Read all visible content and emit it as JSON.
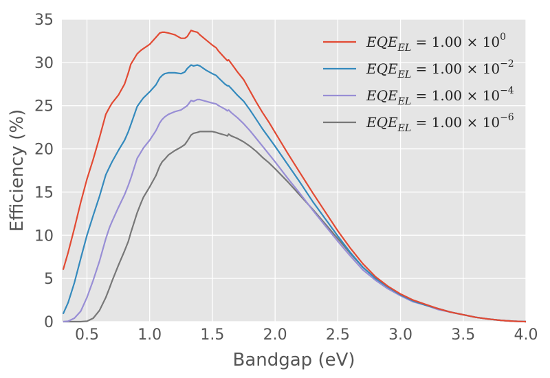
{
  "chart_data": {
    "type": "line",
    "title": "",
    "xlabel": "Bandgap (eV)",
    "ylabel": "Efficiency (%)",
    "xlim": [
      0.3,
      4.0
    ],
    "ylim": [
      0,
      35
    ],
    "xticks": [
      "0.5",
      "1.0",
      "1.5",
      "2.0",
      "2.5",
      "3.0",
      "3.5",
      "4.0"
    ],
    "yticks": [
      "0",
      "5",
      "10",
      "15",
      "20",
      "25",
      "30",
      "35"
    ],
    "grid": true,
    "legend_position": "top-right",
    "background": "#e5e5e5",
    "series": [
      {
        "name": "EQE_EL = 1.00 × 10^0",
        "legend": {
          "base": "1.00",
          "exp": "0"
        },
        "color": "#e24a33",
        "x": [
          0.31,
          0.35,
          0.4,
          0.45,
          0.5,
          0.55,
          0.6,
          0.65,
          0.68,
          0.7,
          0.75,
          0.8,
          0.83,
          0.85,
          0.9,
          0.93,
          0.95,
          1.0,
          1.05,
          1.08,
          1.1,
          1.12,
          1.15,
          1.2,
          1.25,
          1.28,
          1.3,
          1.33,
          1.35,
          1.38,
          1.4,
          1.45,
          1.5,
          1.53,
          1.55,
          1.6,
          1.62,
          1.63,
          1.65,
          1.7,
          1.75,
          1.8,
          1.85,
          1.9,
          1.95,
          2.0,
          2.1,
          2.2,
          2.3,
          2.4,
          2.5,
          2.6,
          2.7,
          2.8,
          2.9,
          3.0,
          3.1,
          3.2,
          3.3,
          3.4,
          3.5,
          3.6,
          3.7,
          3.8,
          3.9,
          4.0
        ],
        "y": [
          6.0,
          8.0,
          10.8,
          13.8,
          16.5,
          18.8,
          21.3,
          24.0,
          24.8,
          25.3,
          26.2,
          27.5,
          28.8,
          29.8,
          31.0,
          31.4,
          31.6,
          32.1,
          32.9,
          33.4,
          33.5,
          33.5,
          33.4,
          33.2,
          32.8,
          32.8,
          33.0,
          33.7,
          33.6,
          33.5,
          33.2,
          32.6,
          32.0,
          31.7,
          31.3,
          30.5,
          30.2,
          30.3,
          29.9,
          28.9,
          28.0,
          26.7,
          25.4,
          24.2,
          23.1,
          21.9,
          19.5,
          17.2,
          14.9,
          12.7,
          10.5,
          8.5,
          6.7,
          5.2,
          4.1,
          3.2,
          2.5,
          2.0,
          1.5,
          1.1,
          0.8,
          0.5,
          0.3,
          0.15,
          0.05,
          0.0
        ]
      },
      {
        "name": "EQE_EL = 1.00 × 10^-2",
        "legend": {
          "base": "1.00",
          "exp": "−2"
        },
        "color": "#348abd",
        "x": [
          0.31,
          0.35,
          0.4,
          0.45,
          0.5,
          0.55,
          0.6,
          0.65,
          0.68,
          0.7,
          0.75,
          0.8,
          0.83,
          0.85,
          0.9,
          0.93,
          0.95,
          1.0,
          1.05,
          1.08,
          1.1,
          1.12,
          1.15,
          1.2,
          1.25,
          1.28,
          1.3,
          1.33,
          1.35,
          1.38,
          1.4,
          1.45,
          1.5,
          1.53,
          1.55,
          1.6,
          1.62,
          1.63,
          1.65,
          1.7,
          1.75,
          1.8,
          1.85,
          1.9,
          1.95,
          2.0,
          2.1,
          2.2,
          2.3,
          2.4,
          2.5,
          2.6,
          2.7,
          2.8,
          2.9,
          3.0,
          3.1,
          3.2,
          3.3,
          3.4,
          3.5,
          3.6,
          3.7,
          3.8,
          3.9,
          4.0
        ],
        "y": [
          0.9,
          2.2,
          4.5,
          7.3,
          10.0,
          12.3,
          14.5,
          17.0,
          17.9,
          18.5,
          19.8,
          21.0,
          22.0,
          22.8,
          24.9,
          25.5,
          25.9,
          26.6,
          27.4,
          28.2,
          28.5,
          28.7,
          28.8,
          28.8,
          28.7,
          28.9,
          29.3,
          29.7,
          29.6,
          29.7,
          29.6,
          29.1,
          28.7,
          28.5,
          28.2,
          27.5,
          27.3,
          27.3,
          27.0,
          26.2,
          25.5,
          24.5,
          23.4,
          22.3,
          21.3,
          20.3,
          18.2,
          16.1,
          13.9,
          11.9,
          9.9,
          8.0,
          6.3,
          5.0,
          4.0,
          3.1,
          2.4,
          1.9,
          1.5,
          1.1,
          0.8,
          0.5,
          0.3,
          0.15,
          0.05,
          0.0
        ]
      },
      {
        "name": "EQE_EL = 1.00 × 10^-4",
        "legend": {
          "base": "1.00",
          "exp": "−4"
        },
        "color": "#988ed5",
        "x": [
          0.31,
          0.35,
          0.4,
          0.45,
          0.5,
          0.55,
          0.6,
          0.65,
          0.68,
          0.7,
          0.75,
          0.8,
          0.83,
          0.85,
          0.9,
          0.93,
          0.95,
          1.0,
          1.05,
          1.08,
          1.1,
          1.12,
          1.15,
          1.2,
          1.25,
          1.28,
          1.3,
          1.33,
          1.35,
          1.38,
          1.4,
          1.45,
          1.5,
          1.53,
          1.55,
          1.6,
          1.62,
          1.63,
          1.65,
          1.7,
          1.75,
          1.8,
          1.85,
          1.9,
          1.95,
          2.0,
          2.1,
          2.2,
          2.3,
          2.4,
          2.5,
          2.6,
          2.7,
          2.8,
          2.9,
          3.0,
          3.1,
          3.2,
          3.3,
          3.4,
          3.5,
          3.6,
          3.7,
          3.8,
          3.9,
          4.0
        ],
        "y": [
          0.0,
          0.05,
          0.4,
          1.2,
          2.8,
          4.8,
          7.0,
          9.6,
          10.9,
          11.6,
          13.2,
          14.7,
          15.8,
          16.6,
          18.9,
          19.6,
          20.1,
          21.0,
          22.1,
          23.0,
          23.4,
          23.7,
          24.0,
          24.3,
          24.5,
          24.8,
          25.0,
          25.6,
          25.5,
          25.7,
          25.7,
          25.5,
          25.3,
          25.2,
          25.0,
          24.6,
          24.4,
          24.5,
          24.2,
          23.6,
          22.9,
          22.1,
          21.2,
          20.3,
          19.4,
          18.5,
          16.6,
          14.8,
          12.9,
          11.1,
          9.3,
          7.6,
          6.0,
          4.8,
          3.8,
          3.0,
          2.3,
          1.9,
          1.4,
          1.1,
          0.8,
          0.5,
          0.3,
          0.15,
          0.05,
          0.0
        ]
      },
      {
        "name": "EQE_EL = 1.00 × 10^-6",
        "legend": {
          "base": "1.00",
          "exp": "−6"
        },
        "color": "#777777",
        "x": [
          0.31,
          0.35,
          0.4,
          0.45,
          0.5,
          0.55,
          0.6,
          0.65,
          0.68,
          0.7,
          0.75,
          0.8,
          0.83,
          0.85,
          0.9,
          0.93,
          0.95,
          1.0,
          1.05,
          1.08,
          1.1,
          1.12,
          1.15,
          1.2,
          1.25,
          1.28,
          1.3,
          1.33,
          1.35,
          1.38,
          1.4,
          1.45,
          1.5,
          1.53,
          1.55,
          1.6,
          1.62,
          1.63,
          1.65,
          1.7,
          1.75,
          1.8,
          1.85,
          1.9,
          1.95,
          2.0,
          2.1,
          2.2,
          2.3,
          2.4,
          2.5,
          2.6,
          2.7,
          2.8,
          2.9,
          3.0,
          3.1,
          3.2,
          3.3,
          3.4,
          3.5,
          3.6,
          3.7,
          3.8,
          3.9,
          4.0
        ],
        "y": [
          0.0,
          0.0,
          0.0,
          0.0,
          0.05,
          0.4,
          1.3,
          2.8,
          3.9,
          4.7,
          6.5,
          8.2,
          9.3,
          10.3,
          12.6,
          13.7,
          14.4,
          15.6,
          16.9,
          18.0,
          18.5,
          18.8,
          19.3,
          19.8,
          20.2,
          20.5,
          20.9,
          21.6,
          21.8,
          21.9,
          22.0,
          22.0,
          22.0,
          21.9,
          21.8,
          21.6,
          21.5,
          21.7,
          21.5,
          21.2,
          20.8,
          20.3,
          19.7,
          19.0,
          18.4,
          17.7,
          16.2,
          14.6,
          13.0,
          11.3,
          9.6,
          7.9,
          6.3,
          5.0,
          4.0,
          3.1,
          2.4,
          1.9,
          1.5,
          1.1,
          0.8,
          0.5,
          0.3,
          0.15,
          0.05,
          0.0
        ]
      }
    ]
  }
}
